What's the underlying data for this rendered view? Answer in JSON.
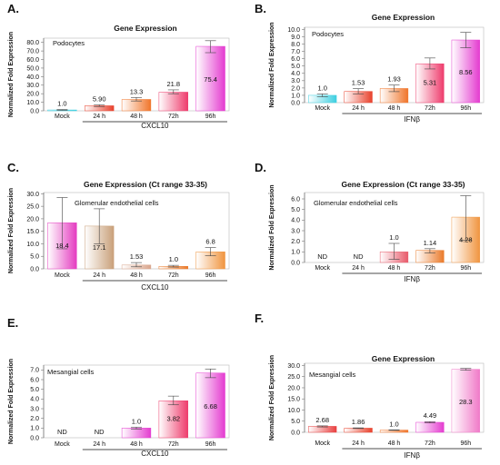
{
  "chart_data": [
    {
      "panel": "A.",
      "type": "bar",
      "title": "Gene Expression",
      "note": "Podocytes",
      "ylabel": "Normalized Fold Expression",
      "group_label": "CXCL10",
      "categories": [
        "Mock",
        "24 h",
        "48 h",
        "72h",
        "96h"
      ],
      "values": [
        1.0,
        5.9,
        13.3,
        21.8,
        75.4
      ],
      "data_labels": [
        "1.0",
        "5.90",
        "13.3",
        "21.8",
        "75.4"
      ],
      "error_high": [
        1.5,
        7.0,
        15.5,
        24.5,
        82.0
      ],
      "error_low": [
        0.6,
        5.0,
        11.5,
        20.0,
        68.0
      ],
      "colors": [
        "#3ecfe0",
        "#e8412c",
        "#f0752a",
        "#ee3c6c",
        "#e43cd0"
      ],
      "yticks": [
        "0.0",
        "10.0",
        "20.0",
        "30.0",
        "40.0",
        "50.0",
        "60.0",
        "70.0",
        "80.0"
      ],
      "ylim": [
        0,
        85
      ],
      "group_start": 1
    },
    {
      "panel": "B.",
      "type": "bar",
      "title": "Gene Expression",
      "note": "Podocytes",
      "ylabel": "Normalized Fold Expression",
      "group_label": "IFNβ",
      "categories": [
        "Mock",
        "24 h",
        "48 h",
        "72h",
        "96h"
      ],
      "values": [
        1.0,
        1.53,
        1.93,
        5.31,
        8.56
      ],
      "data_labels": [
        "1.0",
        "1.53",
        "1.93",
        "5.31",
        "8.56"
      ],
      "error_high": [
        1.2,
        1.9,
        2.4,
        6.1,
        9.6
      ],
      "error_low": [
        0.8,
        1.2,
        1.5,
        4.6,
        7.5
      ],
      "colors": [
        "#3ecfe0",
        "#e8412c",
        "#f0752a",
        "#ee3c6c",
        "#e43cd0"
      ],
      "yticks": [
        "0.0",
        "1.0",
        "2.0",
        "3.0",
        "4.0",
        "5.0",
        "6.0",
        "7.0",
        "8.0",
        "9.0",
        "10.0"
      ],
      "ylim": [
        0,
        10.3
      ],
      "group_start": 1
    },
    {
      "panel": "C.",
      "type": "bar",
      "title": "Gene Expression (Ct range 33-35)",
      "note": "Glomerular endothelial cells",
      "ylabel": "Normalized Fold Expression",
      "group_label": "CXCL10",
      "categories": [
        "Mock",
        "24 h",
        "48 h",
        "72h",
        "96h"
      ],
      "values": [
        18.4,
        17.1,
        1.53,
        1.0,
        6.8
      ],
      "data_labels": [
        "18.4",
        "17.1",
        "1.53",
        "1.0",
        "6.8"
      ],
      "error_high": [
        28.5,
        24.0,
        2.5,
        1.4,
        8.5
      ],
      "error_low": [
        8.0,
        10.0,
        0.8,
        0.7,
        5.2
      ],
      "colors": [
        "#e43cc0",
        "#c9a07a",
        "#d9a58c",
        "#ea7a2a",
        "#f09540"
      ],
      "yticks": [
        "0.0",
        "5.0",
        "10.0",
        "15.0",
        "20.0",
        "25.0",
        "30.0"
      ],
      "ylim": [
        0,
        30.5
      ],
      "group_start": 1
    },
    {
      "panel": "D.",
      "type": "bar",
      "title": "Gene Expression (Ct range 33-35)",
      "note": "Glomerular endothelial cells",
      "ylabel": "Normalized Fold Expression",
      "group_label": "IFNβ",
      "categories": [
        "Mock",
        "24 h",
        "48 h",
        "72h",
        "96h"
      ],
      "values": [
        0,
        0,
        1.0,
        1.14,
        4.28
      ],
      "data_labels": [
        "ND",
        "ND",
        "1.0",
        "1.14",
        "4.28"
      ],
      "error_high": [
        null,
        null,
        1.8,
        1.3,
        6.3
      ],
      "error_low": [
        null,
        null,
        0.3,
        0.9,
        2.1
      ],
      "colors": [
        "#e84040",
        "#e84040",
        "#e85a6a",
        "#ea7a2a",
        "#f09540"
      ],
      "yticks": [
        "0.0",
        "1.0",
        "2.0",
        "3.0",
        "4.0",
        "5.0",
        "6.0"
      ],
      "ylim": [
        0,
        6.6
      ],
      "group_start": 1
    },
    {
      "panel": "E.",
      "type": "bar",
      "title": "",
      "note": "Mesangial cells",
      "ylabel": "Normalized Fold Expression",
      "group_label": "CXCL10",
      "categories": [
        "Mock",
        "24 h",
        "48 h",
        "72h",
        "96h"
      ],
      "values": [
        0,
        0,
        1.0,
        3.82,
        6.68
      ],
      "data_labels": [
        "ND",
        "ND",
        "1.0",
        "3.82",
        "6.68"
      ],
      "error_high": [
        null,
        null,
        1.1,
        4.3,
        7.1
      ],
      "error_low": [
        null,
        null,
        0.9,
        3.4,
        6.2
      ],
      "colors": [
        "#e84040",
        "#e84040",
        "#e43cd0",
        "#ee3c6c",
        "#e43cd0"
      ],
      "yticks": [
        "0.0",
        "1.0",
        "2.0",
        "3.0",
        "4.0",
        "5.0",
        "6.0",
        "7.0"
      ],
      "ylim": [
        0,
        7.5
      ],
      "group_start": 1
    },
    {
      "panel": "F.",
      "type": "bar",
      "title": "Gene Expression",
      "note": "Mesangial cells",
      "ylabel": "Normalized Fold Expression",
      "group_label": "IFNβ",
      "categories": [
        "Mock",
        "24 h",
        "48 h",
        "72h",
        "96h"
      ],
      "values": [
        2.68,
        1.86,
        1.0,
        4.49,
        28.3
      ],
      "data_labels": [
        "2.68",
        "1.86",
        "1.0",
        "4.49",
        "28.3"
      ],
      "error_high": [
        2.9,
        2.0,
        1.1,
        4.8,
        28.7
      ],
      "error_low": [
        2.4,
        1.7,
        0.9,
        4.2,
        27.9
      ],
      "colors": [
        "#e84040",
        "#e8412c",
        "#f0752a",
        "#e43cd0",
        "#f07ac8"
      ],
      "yticks": [
        "0.0",
        "5.0",
        "10.0",
        "15.0",
        "20.0",
        "25.0",
        "30.0"
      ],
      "ylim": [
        0,
        31
      ],
      "group_start": 1
    }
  ]
}
